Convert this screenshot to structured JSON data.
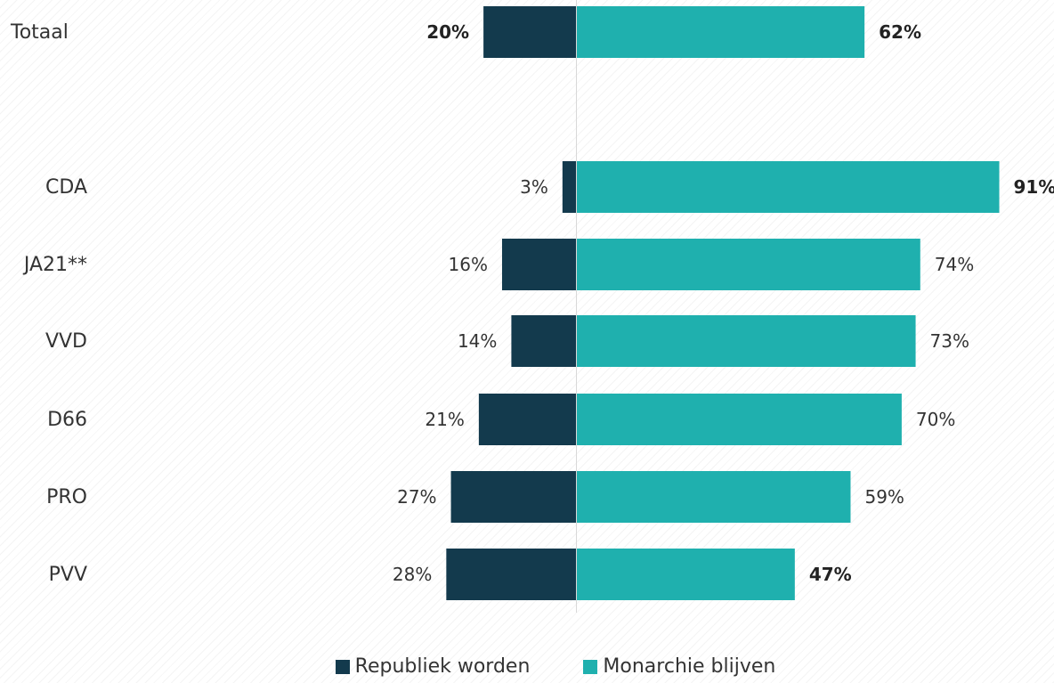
{
  "chart_data": {
    "type": "bar",
    "orientation": "horizontal-diverging",
    "categories": [
      "Totaal",
      "CDA",
      "JA21**",
      "VVD",
      "D66",
      "PRO",
      "PVV"
    ],
    "series": [
      {
        "name": "Republiek worden",
        "color": "#133a4d",
        "values": [
          20,
          3,
          16,
          14,
          21,
          27,
          28
        ],
        "labels": [
          "20%",
          "3%",
          "16%",
          "14%",
          "21%",
          "27%",
          "28%"
        ],
        "bold": [
          true,
          false,
          false,
          false,
          false,
          false,
          false
        ]
      },
      {
        "name": "Monarchie blijven",
        "color": "#1fb0ae",
        "values": [
          62,
          91,
          74,
          73,
          70,
          59,
          47
        ],
        "labels": [
          "62%",
          "91%",
          "74%",
          "73%",
          "70%",
          "59%",
          "47%"
        ],
        "bold": [
          true,
          true,
          false,
          false,
          false,
          false,
          true
        ]
      }
    ],
    "xlabel": "",
    "ylabel": "",
    "legend_position": "bottom-center",
    "grid": false
  }
}
